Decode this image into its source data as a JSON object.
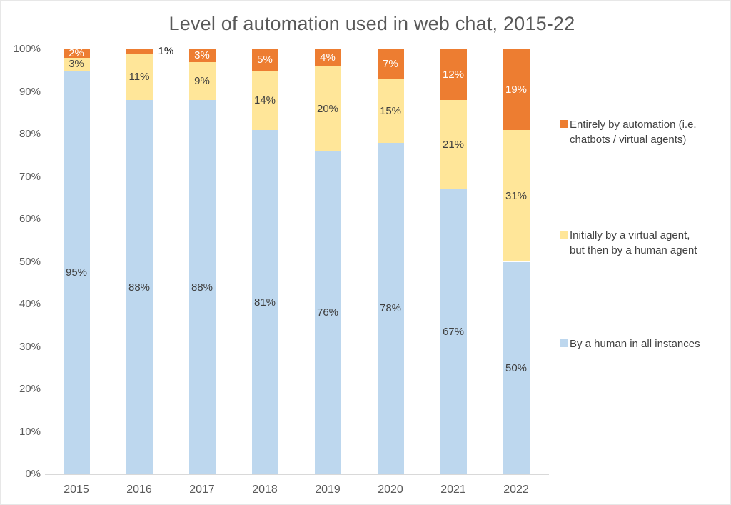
{
  "title": "Level of automation used in web chat, 2015-22",
  "chart_data": {
    "type": "bar",
    "stacked": true,
    "title": "Level of automation used in web chat, 2015-22",
    "categories": [
      "2015",
      "2016",
      "2017",
      "2018",
      "2019",
      "2020",
      "2021",
      "2022"
    ],
    "series": [
      {
        "name": "By a human in all instances",
        "color": "#BDD7EE",
        "label_color": "#404040",
        "values": [
          95,
          88,
          88,
          81,
          76,
          78,
          67,
          50
        ]
      },
      {
        "name": "Initially by a virtual agent, but then by a human agent",
        "color": "#FFE699",
        "label_color": "#404040",
        "values": [
          3,
          11,
          9,
          14,
          20,
          15,
          21,
          31
        ]
      },
      {
        "name": "Entirely by automation (i.e. chatbots / virtual agents)",
        "color": "#ED7D31",
        "label_color": "#FFFFFF",
        "values": [
          2,
          1,
          3,
          5,
          4,
          7,
          12,
          19
        ]
      }
    ],
    "y_ticks": [
      "0%",
      "10%",
      "20%",
      "30%",
      "40%",
      "50%",
      "60%",
      "70%",
      "80%",
      "90%",
      "100%"
    ],
    "ylim": [
      0,
      100
    ],
    "grid": false,
    "data_labels": "percent, shown at center of each segment; tiny segments labeled outside (2016 automation 1%)",
    "legend_position": "right"
  },
  "legend": {
    "entries": [
      {
        "label": "Entirely by automation (i.e.\nchatbots / virtual agents)",
        "color": "#ED7D31"
      },
      {
        "label": "Initially by a virtual agent,\nbut then by a human agent",
        "color": "#FFE699"
      },
      {
        "label": "By a human in all instances",
        "color": "#BDD7EE"
      }
    ]
  },
  "colors": {
    "human_series": "#BDD7EE",
    "virtual_then_human_series": "#FFE699",
    "automation_series": "#ED7D31",
    "axis_text": "#595959",
    "dark_label": "#404040",
    "light_label": "#FFFFFF",
    "axis_line": "#D9D9D9"
  }
}
